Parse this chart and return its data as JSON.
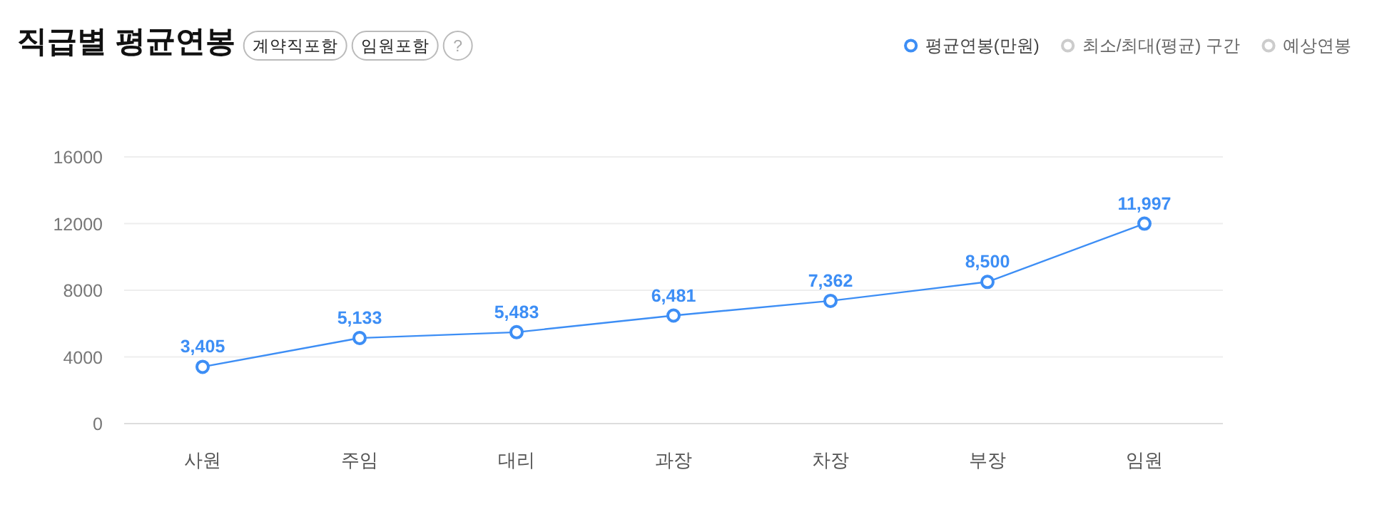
{
  "chart_data": {
    "type": "line",
    "title": "직급별 평균연봉",
    "annotations": [
      "계약직포함",
      "임원포함",
      "?"
    ],
    "categories": [
      "사원",
      "주임",
      "대리",
      "과장",
      "차장",
      "부장",
      "임원"
    ],
    "series": [
      {
        "name": "평균연봉(만원)",
        "color": "#3d8ef5",
        "values": [
          3405,
          5133,
          5483,
          6481,
          7362,
          8500,
          11997
        ],
        "value_labels": [
          "3,405",
          "5,133",
          "5,483",
          "6,481",
          "7,362",
          "8,500",
          "11,997"
        ]
      },
      {
        "name": "최소/최대(평균) 구간",
        "color": "#cccccc",
        "values": [
          null,
          null,
          null,
          null,
          null,
          null,
          null
        ]
      },
      {
        "name": "예상연봉",
        "color": "#cccccc",
        "values": [
          null,
          null,
          null,
          null,
          null,
          null,
          null
        ]
      }
    ],
    "ylim": [
      0,
      16000
    ],
    "yticks": [
      0,
      4000,
      8000,
      12000,
      16000
    ],
    "grid": "y",
    "legend": "top right",
    "marker": "circle",
    "line_style": "solid"
  }
}
